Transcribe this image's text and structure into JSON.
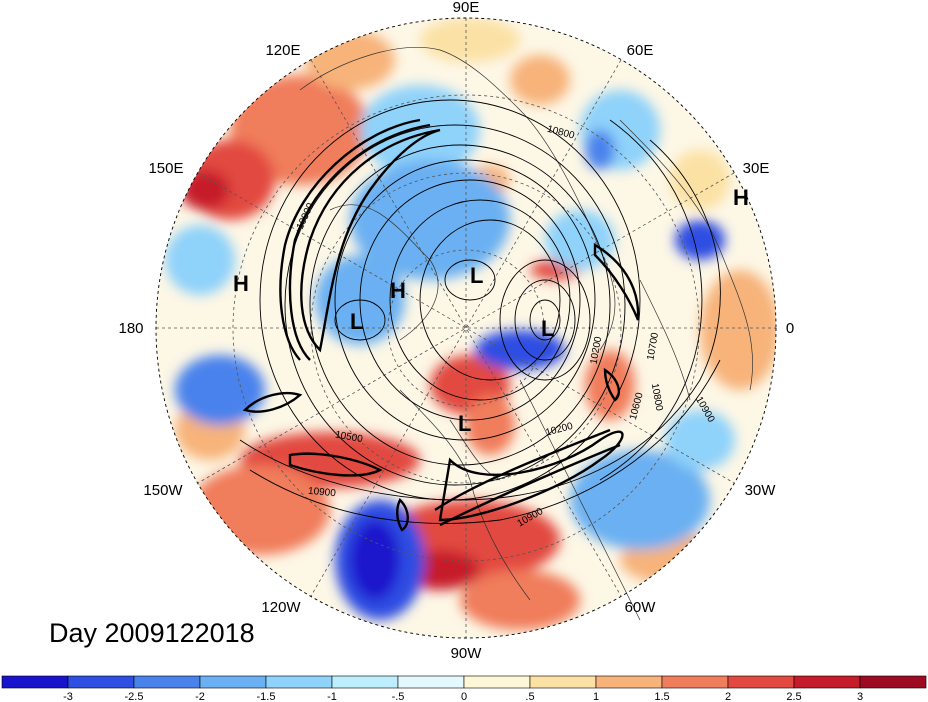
{
  "date_label": "Day 2009122018",
  "longitude_labels": {
    "lon_90e": "90E",
    "lon_60e": "60E",
    "lon_30e": "30E",
    "lon_0": "0",
    "lon_30w": "30W",
    "lon_60w": "60W",
    "lon_90w": "90W",
    "lon_120w": "120W",
    "lon_150w": "150W",
    "lon_180": "180",
    "lon_150e": "150E",
    "lon_120e": "120E"
  },
  "pressure_centers": {
    "h1": "H",
    "h2": "H",
    "h3": "H",
    "l1": "L",
    "l2": "L",
    "l3": "L",
    "l4": "L"
  },
  "contour_labels": [
    "10800",
    "10900",
    "10700",
    "10800",
    "10900",
    "10200",
    "10600",
    "10200",
    "10500",
    "10900",
    "10900"
  ],
  "colorbar": {
    "colors": [
      "#1a13cc",
      "#2f4ee2",
      "#4a82ec",
      "#6ab0f2",
      "#8fd2fa",
      "#bdeefd",
      "#e4f8fd",
      "#fdf7d8",
      "#fbe1a4",
      "#f7b37a",
      "#f07d5c",
      "#e24940",
      "#c61b2a",
      "#9e0a21"
    ],
    "ticks": [
      "-3",
      "-2.5",
      "-2",
      "-1.5",
      "-1",
      "-.5",
      "0",
      ".5",
      "1",
      "1.5",
      "2",
      "2.5",
      "3"
    ]
  },
  "palette": {
    "ocean_neutral": "#fdf7e6",
    "cool": "#6ab0f2",
    "warm": "#f07d5c"
  }
}
